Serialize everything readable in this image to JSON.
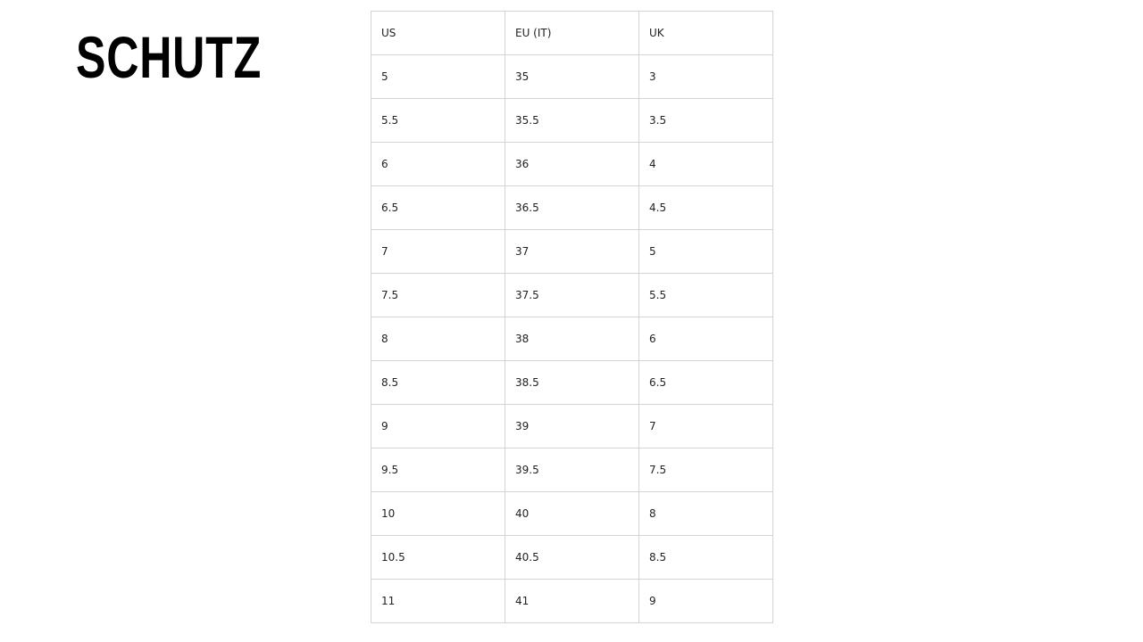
{
  "brand": {
    "logo_text": "SCHUTZ"
  },
  "size_chart": {
    "headers": [
      "US",
      "EU (IT)",
      "UK"
    ],
    "rows": [
      [
        "5",
        "35",
        "3"
      ],
      [
        "5.5",
        "35.5",
        "3.5"
      ],
      [
        "6",
        "36",
        "4"
      ],
      [
        "6.5",
        "36.5",
        "4.5"
      ],
      [
        "7",
        "37",
        "5"
      ],
      [
        "7.5",
        "37.5",
        "5.5"
      ],
      [
        "8",
        "38",
        "6"
      ],
      [
        "8.5",
        "38.5",
        "6.5"
      ],
      [
        "9",
        "39",
        "7"
      ],
      [
        "9.5",
        "39.5",
        "7.5"
      ],
      [
        "10",
        "40",
        "8"
      ],
      [
        "10.5",
        "40.5",
        "8.5"
      ],
      [
        "11",
        "41",
        "9"
      ]
    ]
  }
}
